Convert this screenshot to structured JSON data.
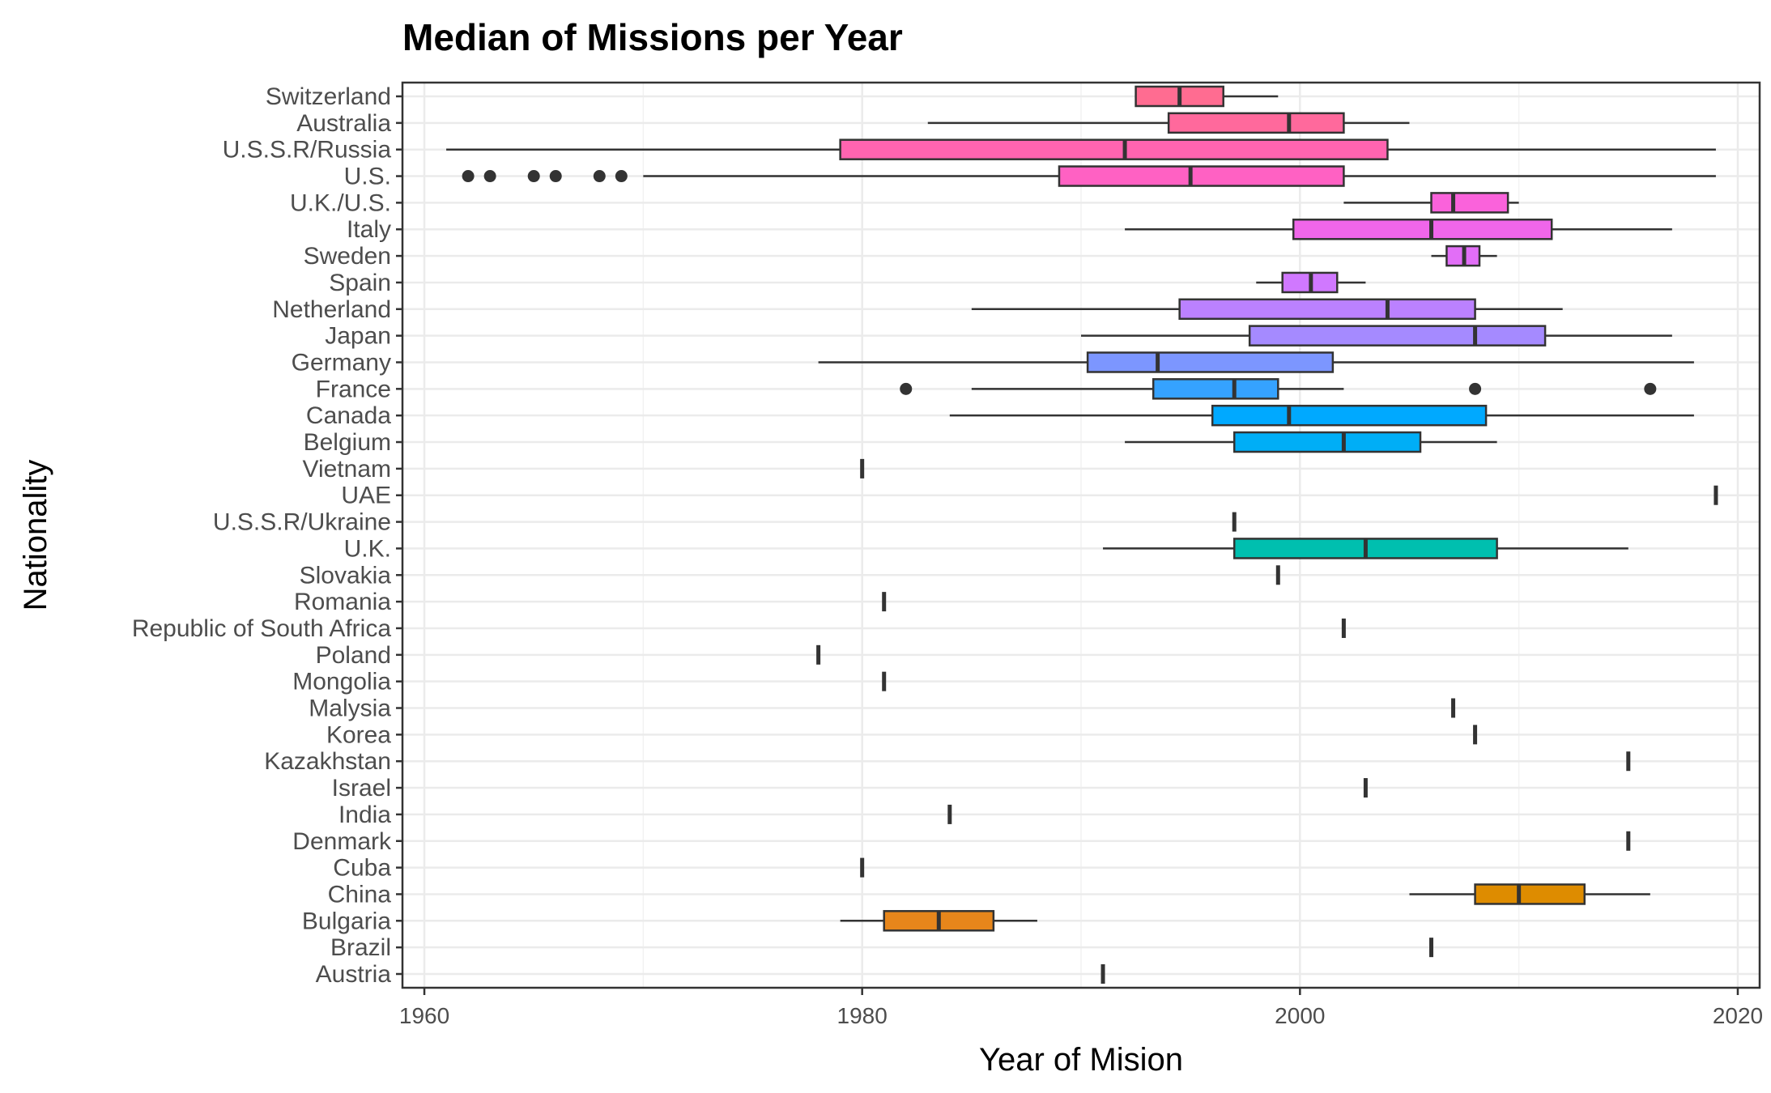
{
  "chart_data": {
    "type": "boxplot",
    "orientation": "horizontal",
    "title": "Median of Missions per Year",
    "xlabel": "Year of Mision",
    "ylabel": "Nationality",
    "xlim": [
      1959,
      2021
    ],
    "xticks": [
      1960,
      1980,
      2000,
      2020
    ],
    "grid": true,
    "legend": "none",
    "series": [
      {
        "name": "Switzerland",
        "min": 1992.5,
        "q1": 1992.5,
        "median": 1994.5,
        "q3": 1996.5,
        "max": 1999,
        "outliers": [],
        "color": "#FF6C91"
      },
      {
        "name": "Australia",
        "min": 1983,
        "q1": 1994,
        "median": 1999.5,
        "q3": 2002,
        "max": 2005,
        "outliers": [],
        "color": "#FF699C"
      },
      {
        "name": "U.S.S.R/Russia",
        "min": 1961,
        "q1": 1979,
        "median": 1992,
        "q3": 2004,
        "max": 2019,
        "outliers": [],
        "color": "#FF64B0"
      },
      {
        "name": "U.S.",
        "min": 1970,
        "q1": 1989,
        "median": 1995,
        "q3": 2002,
        "max": 2019,
        "outliers": [
          1962,
          1963,
          1965,
          1966,
          1968,
          1969
        ],
        "color": "#FF61C3"
      },
      {
        "name": "U.K./U.S.",
        "min": 2002,
        "q1": 2006,
        "median": 2007,
        "q3": 2009.5,
        "max": 2010,
        "outliers": [],
        "color": "#FA62DB"
      },
      {
        "name": "Italy",
        "min": 1992,
        "q1": 1999.7,
        "median": 2006,
        "q3": 2011.5,
        "max": 2017,
        "outliers": [],
        "color": "#F066EA"
      },
      {
        "name": "Sweden",
        "min": 2006,
        "q1": 2006.7,
        "median": 2007.5,
        "q3": 2008.2,
        "max": 2009,
        "outliers": [],
        "color": "#E26EF7"
      },
      {
        "name": "Spain",
        "min": 1998,
        "q1": 1999.2,
        "median": 2000.5,
        "q3": 2001.7,
        "max": 2003,
        "outliers": [],
        "color": "#D078FF"
      },
      {
        "name": "Netherland",
        "min": 1985,
        "q1": 1994.5,
        "median": 2004,
        "q3": 2008,
        "max": 2012,
        "outliers": [],
        "color": "#BB81FF"
      },
      {
        "name": "Japan",
        "min": 1990,
        "q1": 1997.7,
        "median": 2008,
        "q3": 2011.2,
        "max": 2017,
        "outliers": [],
        "color": "#A58AFF"
      },
      {
        "name": "Germany",
        "min": 1978,
        "q1": 1990.3,
        "median": 1993.5,
        "q3": 2001.5,
        "max": 2018,
        "outliers": [],
        "color": "#7C96FF"
      },
      {
        "name": "France",
        "min": 1985,
        "q1": 1993.3,
        "median": 1997,
        "q3": 1999,
        "max": 2002,
        "outliers": [
          1982,
          2008,
          2016
        ],
        "color": "#35A2FF"
      },
      {
        "name": "Canada",
        "min": 1984,
        "q1": 1996,
        "median": 1999.5,
        "q3": 2008.5,
        "max": 2018,
        "outliers": [],
        "color": "#00A9FF"
      },
      {
        "name": "Belgium",
        "min": 1992,
        "q1": 1997,
        "median": 2002,
        "q3": 2005.5,
        "max": 2009,
        "outliers": [],
        "color": "#00AEF6"
      },
      {
        "name": "Vietnam",
        "min": 1980,
        "q1": 1980,
        "median": 1980,
        "q3": 1980,
        "max": 1980,
        "outliers": [],
        "color": "#00B4EF"
      },
      {
        "name": "UAE",
        "min": 2019,
        "q1": 2019,
        "median": 2019,
        "q3": 2019,
        "max": 2019,
        "outliers": [],
        "color": "#00B8E3"
      },
      {
        "name": "U.S.S.R/Ukraine",
        "min": 1997,
        "q1": 1997,
        "median": 1997,
        "q3": 1997,
        "max": 1997,
        "outliers": [],
        "color": "#00BCD6"
      },
      {
        "name": "U.K.",
        "min": 1991,
        "q1": 1997,
        "median": 2003,
        "q3": 2009,
        "max": 2015,
        "outliers": [],
        "color": "#00BFAF"
      },
      {
        "name": "Slovakia",
        "min": 1999,
        "q1": 1999,
        "median": 1999,
        "q3": 1999,
        "max": 1999,
        "outliers": [],
        "color": "#00C19A"
      },
      {
        "name": "Romania",
        "min": 1981,
        "q1": 1981,
        "median": 1981,
        "q3": 1981,
        "max": 1981,
        "outliers": [],
        "color": "#00C087"
      },
      {
        "name": "Republic of South Africa",
        "min": 2002,
        "q1": 2002,
        "median": 2002,
        "q3": 2002,
        "max": 2002,
        "outliers": [],
        "color": "#00BE70"
      },
      {
        "name": "Poland",
        "min": 1978,
        "q1": 1978,
        "median": 1978,
        "q3": 1978,
        "max": 1978,
        "outliers": [],
        "color": "#00BB4E"
      },
      {
        "name": "Mongolia",
        "min": 1981,
        "q1": 1981,
        "median": 1981,
        "q3": 1981,
        "max": 1981,
        "outliers": [],
        "color": "#39B600"
      },
      {
        "name": "Malysia",
        "min": 2007,
        "q1": 2007,
        "median": 2007,
        "q3": 2007,
        "max": 2007,
        "outliers": [],
        "color": "#64B200"
      },
      {
        "name": "Korea",
        "min": 2008,
        "q1": 2008,
        "median": 2008,
        "q3": 2008,
        "max": 2008,
        "outliers": [],
        "color": "#7CAE00"
      },
      {
        "name": "Kazakhstan",
        "min": 2015,
        "q1": 2015,
        "median": 2015,
        "q3": 2015,
        "max": 2015,
        "outliers": [],
        "color": "#8FAA00"
      },
      {
        "name": "Israel",
        "min": 2003,
        "q1": 2003,
        "median": 2003,
        "q3": 2003,
        "max": 2003,
        "outliers": [],
        "color": "#A3A500"
      },
      {
        "name": "India",
        "min": 1984,
        "q1": 1984,
        "median": 1984,
        "q3": 1984,
        "max": 1984,
        "outliers": [],
        "color": "#B09C00"
      },
      {
        "name": "Denmark",
        "min": 2015,
        "q1": 2015,
        "median": 2015,
        "q3": 2015,
        "max": 2015,
        "outliers": [],
        "color": "#BD9D00"
      },
      {
        "name": "Cuba",
        "min": 1980,
        "q1": 1980,
        "median": 1980,
        "q3": 1980,
        "max": 1980,
        "outliers": [],
        "color": "#CB9600"
      },
      {
        "name": "China",
        "min": 2005,
        "q1": 2008,
        "median": 2010,
        "q3": 2013,
        "max": 2016,
        "outliers": [],
        "color": "#DE8C00"
      },
      {
        "name": "Bulgaria",
        "min": 1979,
        "q1": 1981,
        "median": 1983.5,
        "q3": 1986,
        "max": 1988,
        "outliers": [],
        "color": "#E7861B"
      },
      {
        "name": "Brazil",
        "min": 2006,
        "q1": 2006,
        "median": 2006,
        "q3": 2006,
        "max": 2006,
        "outliers": [],
        "color": "#F08E00"
      },
      {
        "name": "Austria",
        "min": 1991,
        "q1": 1991,
        "median": 1991,
        "q3": 1991,
        "max": 1991,
        "outliers": [],
        "color": "#F8766D"
      }
    ]
  }
}
